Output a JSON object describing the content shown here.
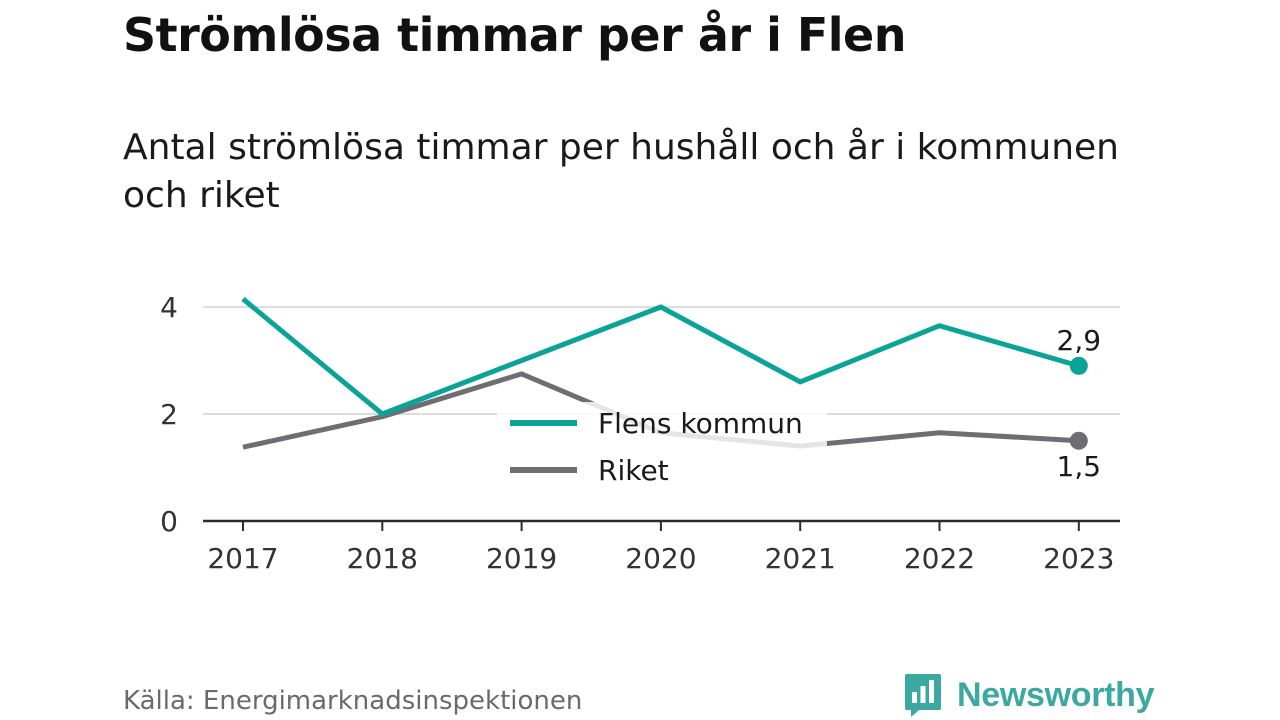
{
  "title": "Strömlösa timmar per år i Flen",
  "subtitle": "Antal strömlösa timmar per hushåll och år i kommunen och riket",
  "source": "Källa: Energimarknadsinspektionen",
  "brand": {
    "name": "Newsworthy",
    "icon": "newsworthy-logo-icon",
    "color": "#3ba8a2"
  },
  "chart_data": {
    "type": "line",
    "x": [
      "2017",
      "2018",
      "2019",
      "2020",
      "2021",
      "2022",
      "2023"
    ],
    "series": [
      {
        "name": "Flens kommun",
        "color": "#0aa398",
        "values": [
          4.15,
          2.0,
          3.0,
          4.0,
          2.6,
          3.65,
          2.9
        ]
      },
      {
        "name": "Riket",
        "color": "#6e6d72",
        "values": [
          1.38,
          1.95,
          2.75,
          1.65,
          1.4,
          1.65,
          1.5
        ]
      }
    ],
    "yticks": [
      0,
      2,
      4
    ],
    "ylim": [
      0,
      4.3
    ],
    "end_labels": [
      "2,9",
      "1,5"
    ],
    "grid": true,
    "legend": "center"
  }
}
